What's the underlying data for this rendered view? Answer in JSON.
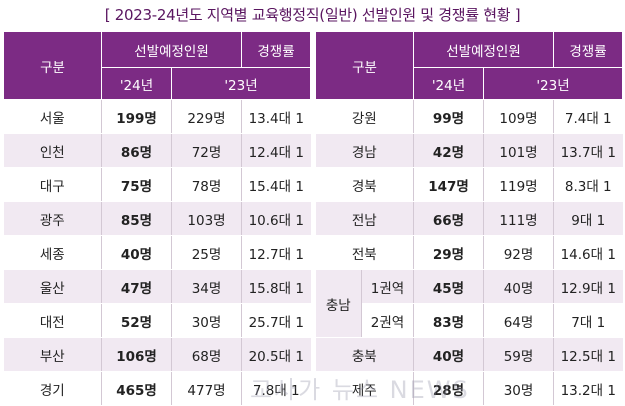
{
  "title": "[ 2023-24년도 지역별 교육행정직(일반) 선발인원 및 경쟁률 현황 ]",
  "headers": {
    "region": "구분",
    "selection": "선발예정인원",
    "competition": "경쟁률",
    "year24": "'24년",
    "year23": "'23년"
  },
  "left_rows": [
    {
      "region": "서울",
      "sel24": "199명",
      "sel23": "229명",
      "rate": "13.4대 1"
    },
    {
      "region": "인천",
      "sel24": "86명",
      "sel23": "72명",
      "rate": "12.4대 1"
    },
    {
      "region": "대구",
      "sel24": "75명",
      "sel23": "78명",
      "rate": "15.4대 1"
    },
    {
      "region": "광주",
      "sel24": "85명",
      "sel23": "103명",
      "rate": "10.6대 1"
    },
    {
      "region": "세종",
      "sel24": "40명",
      "sel23": "25명",
      "rate": "12.7대 1"
    },
    {
      "region": "울산",
      "sel24": "47명",
      "sel23": "34명",
      "rate": "15.8대 1"
    },
    {
      "region": "대전",
      "sel24": "52명",
      "sel23": "30명",
      "rate": "25.7대 1"
    },
    {
      "region": "부산",
      "sel24": "106명",
      "sel23": "68명",
      "rate": "20.5대 1"
    },
    {
      "region": "경기",
      "sel24": "465명",
      "sel23": "477명",
      "rate": "7.8대 1"
    }
  ],
  "right_rows": [
    {
      "region": "강원",
      "sel24": "99명",
      "sel23": "109명",
      "rate": "7.4대 1"
    },
    {
      "region": "경남",
      "sel24": "42명",
      "sel23": "101명",
      "rate": "13.7대 1"
    },
    {
      "region": "경북",
      "sel24": "147명",
      "sel23": "119명",
      "rate": "8.3대 1"
    },
    {
      "region": "전남",
      "sel24": "66명",
      "sel23": "111명",
      "rate": "9대 1"
    },
    {
      "region": "전북",
      "sel24": "29명",
      "sel23": "92명",
      "rate": "14.6대 1"
    },
    {
      "region": "충남",
      "sub": "1권역",
      "sel24": "45명",
      "sel23": "40명",
      "rate": "12.9대 1"
    },
    {
      "region": "충남",
      "sub": "2권역",
      "sel24": "83명",
      "sel23": "64명",
      "rate": "7대 1"
    },
    {
      "region": "충북",
      "sel24": "40명",
      "sel23": "59명",
      "rate": "12.5대 1"
    },
    {
      "region": "제주",
      "sel24": "28명",
      "sel23": "30명",
      "rate": "13.2대 1"
    }
  ],
  "watermark": "교사가 뉴스 NEWS"
}
